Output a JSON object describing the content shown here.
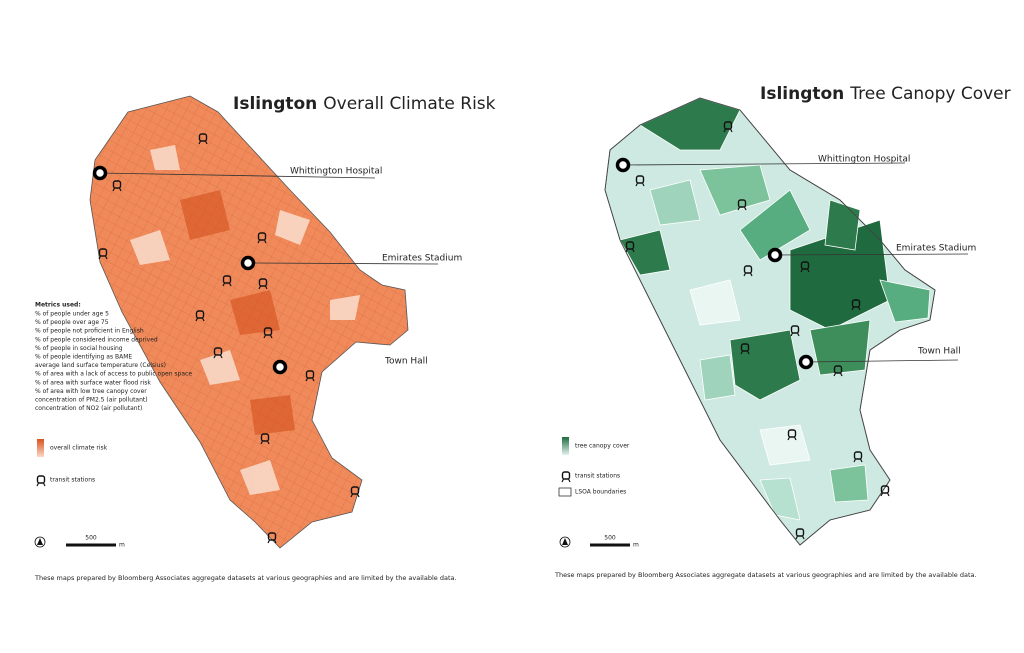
{
  "maps": [
    {
      "title_bold": "Islington",
      "title": "Overall Climate Risk",
      "labels": [
        "Whittington Hospital",
        "Emirates Stadium",
        "Town Hall"
      ],
      "metrics_heading": "Metrics used:",
      "metrics": [
        "% of people under age 5",
        "% of people over age 75",
        "% of people not proficient in English",
        "% of people considered income deprived",
        "% of people in social housing",
        "% of people identifying as BAME",
        "average land surface temperature (Celsius)",
        "% of area with a lack of access to public open space",
        "% of area with surface water flood risk",
        "% of area with low tree canopy cover",
        "concentration of PM2.5 (air pollutant)",
        "concentration of NO2 (air pollutant)"
      ],
      "legend": [
        "overall climate risk",
        "transit stations"
      ],
      "scale": {
        "value": "500",
        "unit": "m"
      },
      "footer": "These maps prepared by Bloomberg Associates aggregate datasets at various geographies and are limited by the available data."
    },
    {
      "title_bold": "Islington",
      "title": "Tree Canopy Cover",
      "labels": [
        "Whittington Hospital",
        "Emirates Stadium",
        "Town Hall"
      ],
      "legend": [
        "tree canopy cover",
        "transit stations",
        "LSOA boundaries"
      ],
      "scale": {
        "value": "500",
        "unit": "m"
      },
      "footer": "These maps prepared by Bloomberg Associates aggregate datasets at various geographies and are limited by the available data."
    }
  ]
}
